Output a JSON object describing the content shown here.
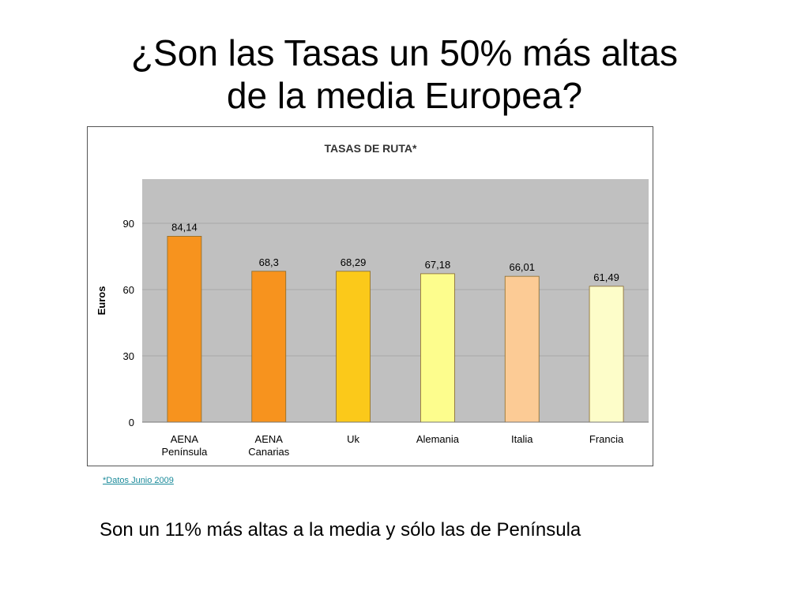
{
  "slide": {
    "title_line1": "¿Son las Tasas un 50% más altas",
    "title_line2": "de la media Europea?",
    "footnote": "*Datos Junio 2009",
    "conclusion": "Son un 11% más altas a la media y sólo las de Península"
  },
  "chart_data": {
    "type": "bar",
    "title": "TASAS DE RUTA*",
    "ylabel": "Euros",
    "xlabel": "",
    "ylim": [
      0,
      110
    ],
    "yticks": [
      0,
      30,
      60,
      90
    ],
    "grid": true,
    "categories": [
      [
        "AENA",
        "Península"
      ],
      [
        "AENA",
        "Canarias"
      ],
      [
        "Uk"
      ],
      [
        "Alemania"
      ],
      [
        "Italia"
      ],
      [
        "Francia"
      ]
    ],
    "values": [
      84.14,
      68.3,
      68.29,
      67.18,
      66.01,
      61.49
    ],
    "value_labels": [
      "84,14",
      "68,3",
      "68,29",
      "67,18",
      "66,01",
      "61,49"
    ],
    "bar_colors": [
      "#f7931e",
      "#f7931e",
      "#fbc91a",
      "#fdfd8d",
      "#fccb95",
      "#fdfdc9"
    ],
    "plot_background": "#c0c0c0"
  }
}
